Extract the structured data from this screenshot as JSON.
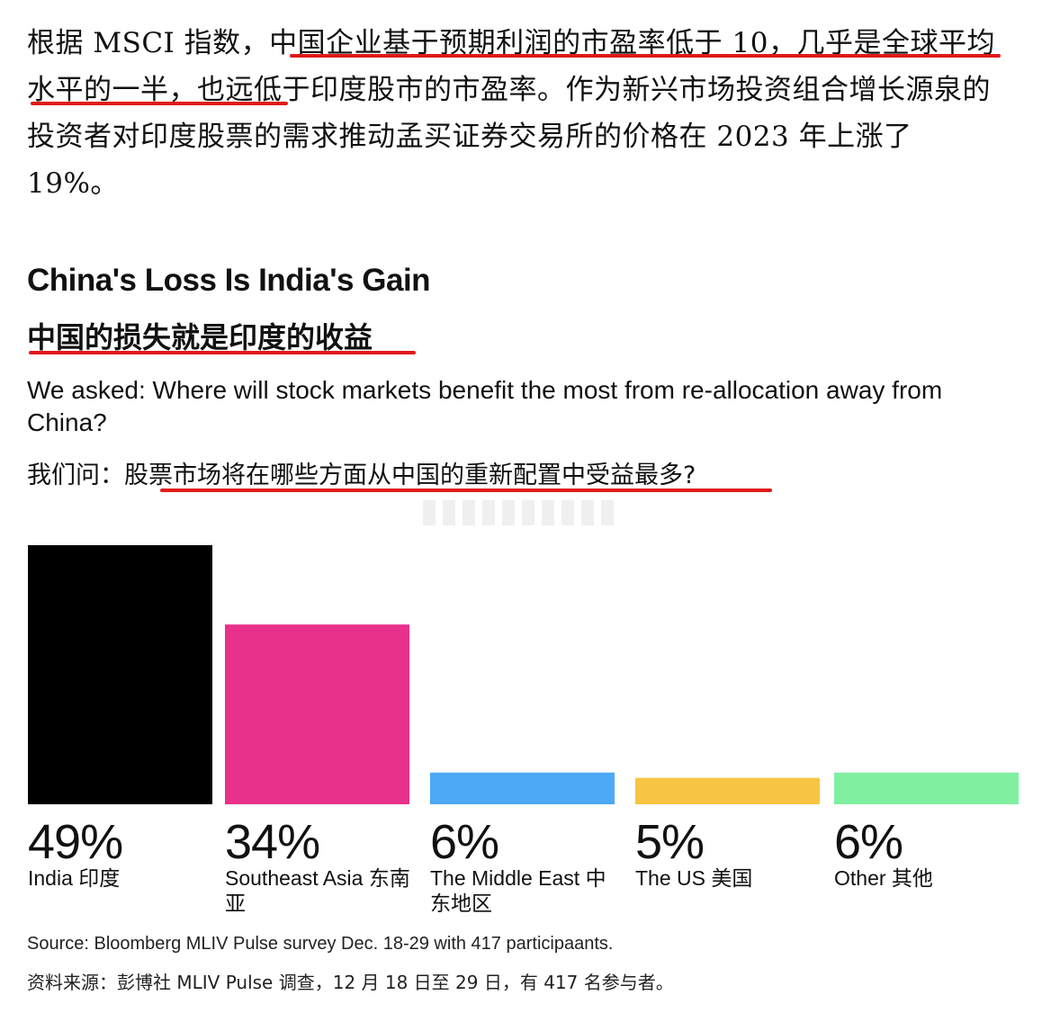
{
  "intro": {
    "before": "根据 MSCI 指数，",
    "highlight": "中国企业基于预期利润的市盈率低于 10，几乎是全球平均水平的一半",
    "after": "，也远低于印度股市的市盈率。作为新兴市场投资组合增长源泉的投资者对印度股票的需求推动孟买证券交易所的价格在 2023 年上涨了 19%。"
  },
  "title_en": "China's Loss Is India's Gain",
  "title_zh": "中国的损失就是印度的收益",
  "question_en": "We asked: Where will stock markets benefit the most from re-allocation away from China?",
  "question_zh_prefix": "我们问：",
  "question_zh_highlight": "股票市场将在哪些方面从中国的重新配置中受益最多",
  "question_zh_suffix": "?",
  "colors": {
    "underline": "#e01a1a"
  },
  "chart_data": {
    "type": "bar",
    "categories": [
      "India 印度",
      "Southeast Asia 东南亚",
      "The Middle East 中东地区",
      "The US 美国",
      "Other 其他"
    ],
    "values": [
      49,
      34,
      6,
      5,
      6
    ],
    "value_labels": [
      "49%",
      "34%",
      "6%",
      "5%",
      "6%"
    ],
    "colors": [
      "#000000",
      "#e8318a",
      "#4da8f5",
      "#f7c543",
      "#80f0a0"
    ],
    "title": "China's Loss Is India's Gain",
    "xlabel": "",
    "ylabel": "",
    "unit": "%",
    "ylim": [
      0,
      49
    ],
    "grid": false
  },
  "source_en": "Source: Bloomberg MLIV Pulse survey Dec. 18-29 with 417 participaants.",
  "source_zh": "资料来源：彭博社 MLIV Pulse 调查，12 月 18 日至 29 日，有 417 名参与者。"
}
